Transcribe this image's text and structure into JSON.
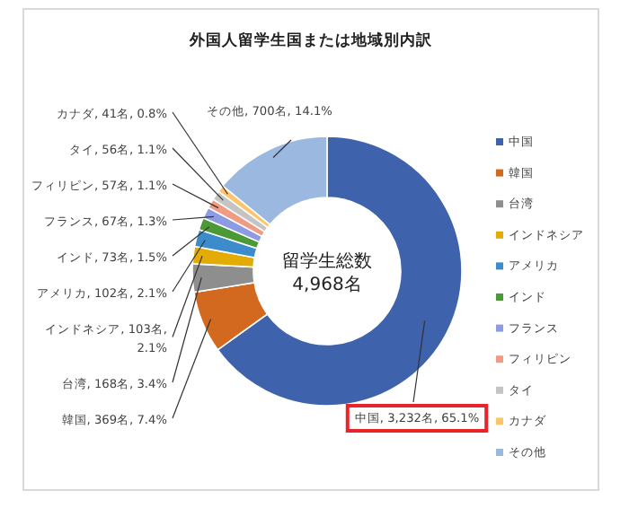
{
  "chart_data": {
    "type": "donut",
    "title": "外国人留学生国または地域別内訳",
    "categories": [
      "中国",
      "韓国",
      "台湾",
      "インドネシア",
      "アメリカ",
      "インド",
      "フランス",
      "フィリピン",
      "タイ",
      "カナダ",
      "その他"
    ],
    "values": [
      3232,
      369,
      168,
      103,
      102,
      73,
      67,
      57,
      56,
      41,
      700
    ],
    "colors": [
      "#3e62ab",
      "#d2691f",
      "#8e8e8e",
      "#e2ac05",
      "#3c8ccb",
      "#4c9a36",
      "#8d9be2",
      "#f09c84",
      "#c4c4c4",
      "#fdc46a",
      "#9bb8e0"
    ],
    "value_labels": [
      "中国, 3,232名, 65.1%",
      "韓国, 369名, 7.4%",
      "台湾, 168名, 3.4%",
      "インドネシア, 103名, 2.1%",
      "アメリカ, 102名, 2.1%",
      "インド, 73名, 1.5%",
      "フランス, 67名, 1.3%",
      "フィリピン, 57名, 1.1%",
      "タイ, 56名, 1.1%",
      "カナダ, 41名, 0.8%",
      "その他, 700名, 14.1%"
    ],
    "annotations": [
      "留学生総数",
      "4,968名"
    ],
    "legend": "right"
  }
}
